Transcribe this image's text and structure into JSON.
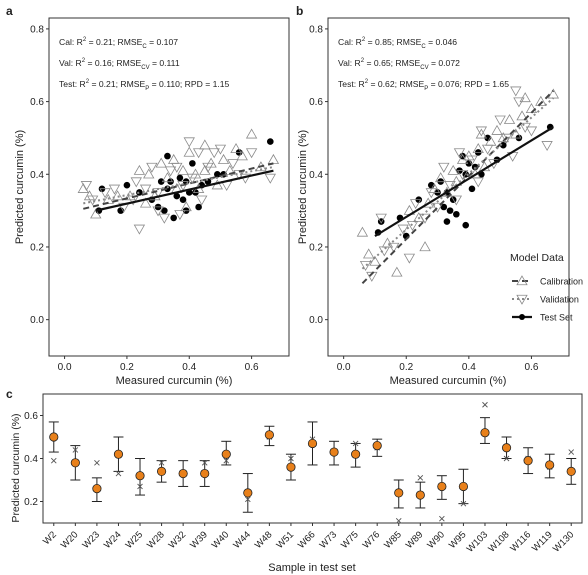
{
  "panels": {
    "a": {
      "letter": "a",
      "ylabel": "Predicted curcumin (%)",
      "xlabel": "Measured curcumin (%)",
      "stats": [
        {
          "pre": "Cal: R",
          "sup": "2",
          "mid": " = 0.21; RMSE",
          "sub": "C",
          "post": " = 0.107"
        },
        {
          "pre": "Val: R",
          "sup": "2",
          "mid": " = 0.16; RMSE",
          "sub": "CV",
          "post": " = 0.111"
        },
        {
          "pre": "Test: R",
          "sup": "2",
          "mid": " = 0.21; RMSE",
          "sub": "P",
          "post": " = 0.110; RPD = 1.15"
        }
      ]
    },
    "b": {
      "letter": "b",
      "ylabel": "Predicted curcumin (%)",
      "xlabel": "Measured curcumin (%)",
      "stats": [
        {
          "pre": "Cal: R",
          "sup": "2",
          "mid": " = 0.85; RMSE",
          "sub": "C",
          "post": " = 0.046"
        },
        {
          "pre": "Val: R",
          "sup": "2",
          "mid": " = 0.65; RMSE",
          "sub": "CV",
          "post": " = 0.072"
        },
        {
          "pre": "Test: R",
          "sup": "2",
          "mid": " = 0.62; RMSE",
          "sub": "P",
          "post": " = 0.076; RPD = 1.65"
        }
      ],
      "legend": {
        "title": "Model Data",
        "items": [
          "Calibration",
          "Validation",
          "Test Set"
        ]
      }
    },
    "c": {
      "letter": "c",
      "ylabel": "Predicted curcumin (%)",
      "xlabel": "Sample in test set"
    }
  },
  "colors": {
    "test_point": "#000000",
    "open_marker": "#8a8a8a",
    "mean_point": "#e8801a",
    "line": "#111111"
  },
  "chart_data": [
    {
      "type": "scatter",
      "panel": "a",
      "xlim": [
        -0.05,
        0.72
      ],
      "ylim": [
        -0.1,
        0.83
      ],
      "xticks": [
        "0.0",
        "0.2",
        "0.4",
        "0.6"
      ],
      "yticks": [
        "0.0",
        "0.2",
        "0.4",
        "0.6",
        "0.8"
      ],
      "series": [
        {
          "name": "Test Set",
          "marker": "filled-circle",
          "points": [
            [
              0.11,
              0.3
            ],
            [
              0.12,
              0.36
            ],
            [
              0.18,
              0.3
            ],
            [
              0.2,
              0.37
            ],
            [
              0.24,
              0.35
            ],
            [
              0.28,
              0.33
            ],
            [
              0.3,
              0.31
            ],
            [
              0.31,
              0.38
            ],
            [
              0.32,
              0.3
            ],
            [
              0.33,
              0.36
            ],
            [
              0.34,
              0.38
            ],
            [
              0.35,
              0.28
            ],
            [
              0.36,
              0.34
            ],
            [
              0.37,
              0.39
            ],
            [
              0.38,
              0.33
            ],
            [
              0.39,
              0.38
            ],
            [
              0.39,
              0.3
            ],
            [
              0.4,
              0.35
            ],
            [
              0.41,
              0.43
            ],
            [
              0.42,
              0.35
            ],
            [
              0.43,
              0.31
            ],
            [
              0.44,
              0.37
            ],
            [
              0.46,
              0.38
            ],
            [
              0.49,
              0.4
            ],
            [
              0.51,
              0.4
            ],
            [
              0.56,
              0.46
            ],
            [
              0.66,
              0.49
            ],
            [
              0.33,
              0.45
            ]
          ]
        },
        {
          "name": "Calibration",
          "marker": "triangle-up",
          "points": [
            [
              0.06,
              0.36
            ],
            [
              0.08,
              0.34
            ],
            [
              0.1,
              0.29
            ],
            [
              0.14,
              0.33
            ],
            [
              0.17,
              0.34
            ],
            [
              0.21,
              0.34
            ],
            [
              0.24,
              0.41
            ],
            [
              0.27,
              0.4
            ],
            [
              0.29,
              0.34
            ],
            [
              0.31,
              0.43
            ],
            [
              0.33,
              0.39
            ],
            [
              0.35,
              0.44
            ],
            [
              0.36,
              0.36
            ],
            [
              0.38,
              0.41
            ],
            [
              0.4,
              0.46
            ],
            [
              0.42,
              0.4
            ],
            [
              0.43,
              0.36
            ],
            [
              0.45,
              0.41
            ],
            [
              0.47,
              0.43
            ],
            [
              0.49,
              0.37
            ],
            [
              0.51,
              0.44
            ],
            [
              0.53,
              0.41
            ],
            [
              0.55,
              0.47
            ],
            [
              0.57,
              0.45
            ],
            [
              0.6,
              0.51
            ],
            [
              0.63,
              0.42
            ],
            [
              0.67,
              0.44
            ],
            [
              0.45,
              0.48
            ],
            [
              0.26,
              0.32
            ],
            [
              0.39,
              0.31
            ]
          ]
        },
        {
          "name": "Validation",
          "marker": "triangle-down",
          "points": [
            [
              0.07,
              0.37
            ],
            [
              0.09,
              0.33
            ],
            [
              0.13,
              0.35
            ],
            [
              0.16,
              0.36
            ],
            [
              0.19,
              0.31
            ],
            [
              0.22,
              0.33
            ],
            [
              0.23,
              0.38
            ],
            [
              0.26,
              0.36
            ],
            [
              0.28,
              0.42
            ],
            [
              0.3,
              0.35
            ],
            [
              0.32,
              0.28
            ],
            [
              0.34,
              0.41
            ],
            [
              0.36,
              0.42
            ],
            [
              0.37,
              0.29
            ],
            [
              0.38,
              0.37
            ],
            [
              0.41,
              0.39
            ],
            [
              0.43,
              0.46
            ],
            [
              0.44,
              0.33
            ],
            [
              0.46,
              0.42
            ],
            [
              0.48,
              0.46
            ],
            [
              0.5,
              0.47
            ],
            [
              0.52,
              0.37
            ],
            [
              0.54,
              0.43
            ],
            [
              0.56,
              0.4
            ],
            [
              0.58,
              0.39
            ],
            [
              0.6,
              0.46
            ],
            [
              0.66,
              0.39
            ],
            [
              0.3,
              0.3
            ],
            [
              0.24,
              0.25
            ],
            [
              0.4,
              0.49
            ]
          ]
        }
      ],
      "fit_lines": [
        {
          "name": "Calibration",
          "style": "dashed",
          "x": [
            0.06,
            0.67
          ],
          "y": [
            0.305,
            0.43
          ]
        },
        {
          "name": "Validation",
          "style": "dotted",
          "x": [
            0.06,
            0.67
          ],
          "y": [
            0.32,
            0.42
          ]
        },
        {
          "name": "Test Set",
          "style": "solid",
          "x": [
            0.1,
            0.67
          ],
          "y": [
            0.3,
            0.41
          ]
        }
      ]
    },
    {
      "type": "scatter",
      "panel": "b",
      "xlim": [
        -0.05,
        0.72
      ],
      "ylim": [
        -0.1,
        0.83
      ],
      "xticks": [
        "0.0",
        "0.2",
        "0.4",
        "0.6"
      ],
      "yticks": [
        "0.0",
        "0.2",
        "0.4",
        "0.6",
        "0.8"
      ],
      "series": [
        {
          "name": "Test Set",
          "marker": "filled-circle",
          "points": [
            [
              0.11,
              0.24
            ],
            [
              0.12,
              0.27
            ],
            [
              0.18,
              0.28
            ],
            [
              0.2,
              0.23
            ],
            [
              0.24,
              0.33
            ],
            [
              0.28,
              0.37
            ],
            [
              0.3,
              0.35
            ],
            [
              0.31,
              0.38
            ],
            [
              0.32,
              0.31
            ],
            [
              0.33,
              0.35
            ],
            [
              0.34,
              0.3
            ],
            [
              0.35,
              0.33
            ],
            [
              0.36,
              0.29
            ],
            [
              0.37,
              0.41
            ],
            [
              0.38,
              0.45
            ],
            [
              0.39,
              0.4
            ],
            [
              0.39,
              0.26
            ],
            [
              0.4,
              0.43
            ],
            [
              0.41,
              0.36
            ],
            [
              0.42,
              0.42
            ],
            [
              0.43,
              0.46
            ],
            [
              0.44,
              0.4
            ],
            [
              0.46,
              0.5
            ],
            [
              0.49,
              0.44
            ],
            [
              0.51,
              0.48
            ],
            [
              0.56,
              0.5
            ],
            [
              0.66,
              0.53
            ],
            [
              0.33,
              0.27
            ]
          ]
        },
        {
          "name": "Calibration",
          "marker": "triangle-up",
          "points": [
            [
              0.06,
              0.24
            ],
            [
              0.08,
              0.18
            ],
            [
              0.1,
              0.16
            ],
            [
              0.14,
              0.21
            ],
            [
              0.17,
              0.13
            ],
            [
              0.21,
              0.3
            ],
            [
              0.24,
              0.28
            ],
            [
              0.27,
              0.32
            ],
            [
              0.29,
              0.36
            ],
            [
              0.31,
              0.39
            ],
            [
              0.33,
              0.35
            ],
            [
              0.35,
              0.41
            ],
            [
              0.36,
              0.38
            ],
            [
              0.38,
              0.44
            ],
            [
              0.4,
              0.45
            ],
            [
              0.42,
              0.4
            ],
            [
              0.43,
              0.47
            ],
            [
              0.45,
              0.42
            ],
            [
              0.47,
              0.49
            ],
            [
              0.49,
              0.52
            ],
            [
              0.51,
              0.5
            ],
            [
              0.53,
              0.55
            ],
            [
              0.55,
              0.51
            ],
            [
              0.57,
              0.56
            ],
            [
              0.6,
              0.58
            ],
            [
              0.63,
              0.6
            ],
            [
              0.67,
              0.62
            ],
            [
              0.26,
              0.2
            ],
            [
              0.44,
              0.51
            ],
            [
              0.58,
              0.61
            ]
          ]
        },
        {
          "name": "Validation",
          "marker": "triangle-down",
          "points": [
            [
              0.07,
              0.15
            ],
            [
              0.09,
              0.12
            ],
            [
              0.13,
              0.19
            ],
            [
              0.16,
              0.2
            ],
            [
              0.19,
              0.25
            ],
            [
              0.22,
              0.26
            ],
            [
              0.23,
              0.32
            ],
            [
              0.26,
              0.28
            ],
            [
              0.28,
              0.35
            ],
            [
              0.3,
              0.31
            ],
            [
              0.32,
              0.42
            ],
            [
              0.34,
              0.37
            ],
            [
              0.36,
              0.33
            ],
            [
              0.37,
              0.46
            ],
            [
              0.38,
              0.4
            ],
            [
              0.41,
              0.44
            ],
            [
              0.43,
              0.38
            ],
            [
              0.44,
              0.52
            ],
            [
              0.46,
              0.47
            ],
            [
              0.48,
              0.43
            ],
            [
              0.5,
              0.55
            ],
            [
              0.52,
              0.5
            ],
            [
              0.54,
              0.45
            ],
            [
              0.56,
              0.6
            ],
            [
              0.58,
              0.53
            ],
            [
              0.6,
              0.52
            ],
            [
              0.65,
              0.48
            ],
            [
              0.55,
              0.63
            ],
            [
              0.21,
              0.17
            ],
            [
              0.12,
              0.28
            ]
          ]
        }
      ],
      "fit_lines": [
        {
          "name": "Calibration",
          "style": "dashed",
          "x": [
            0.06,
            0.67
          ],
          "y": [
            0.1,
            0.63
          ]
        },
        {
          "name": "Validation",
          "style": "dotted",
          "x": [
            0.06,
            0.67
          ],
          "y": [
            0.14,
            0.61
          ]
        },
        {
          "name": "Test Set",
          "style": "solid",
          "x": [
            0.1,
            0.67
          ],
          "y": [
            0.23,
            0.53
          ]
        }
      ]
    },
    {
      "type": "scatter",
      "panel": "c",
      "ylim": [
        0.1,
        0.7
      ],
      "yticks": [
        "0.2",
        "0.4",
        "0.6"
      ],
      "categories": [
        "W2",
        "W20",
        "W23",
        "W24",
        "W25",
        "W28",
        "W32",
        "W39",
        "W40",
        "W44",
        "W48",
        "W51",
        "W66",
        "W73",
        "W75",
        "W76",
        "W85",
        "W89",
        "W90",
        "W95",
        "W103",
        "W108",
        "W116",
        "W119",
        "W130"
      ],
      "series": [
        {
          "name": "mean",
          "values": [
            0.5,
            0.38,
            0.26,
            0.42,
            0.32,
            0.34,
            0.33,
            0.33,
            0.42,
            0.24,
            0.51,
            0.36,
            0.47,
            0.43,
            0.42,
            0.46,
            0.24,
            0.23,
            0.27,
            0.27,
            0.52,
            0.45,
            0.39,
            0.37,
            0.34
          ]
        },
        {
          "name": "lower",
          "values": [
            0.43,
            0.3,
            0.2,
            0.34,
            0.23,
            0.29,
            0.27,
            0.27,
            0.37,
            0.15,
            0.46,
            0.3,
            0.37,
            0.37,
            0.36,
            0.41,
            0.17,
            0.17,
            0.21,
            0.19,
            0.47,
            0.4,
            0.33,
            0.31,
            0.28
          ]
        },
        {
          "name": "upper",
          "values": [
            0.57,
            0.46,
            0.31,
            0.5,
            0.4,
            0.39,
            0.39,
            0.39,
            0.48,
            0.33,
            0.55,
            0.42,
            0.57,
            0.48,
            0.47,
            0.49,
            0.3,
            0.29,
            0.32,
            0.35,
            0.59,
            0.5,
            0.45,
            0.42,
            0.4
          ]
        },
        {
          "name": "measured",
          "values": [
            0.39,
            0.44,
            0.38,
            0.33,
            0.27,
            0.38,
            0.33,
            0.38,
            0.39,
            0.21,
            0.5,
            0.4,
            0.49,
            0.43,
            0.47,
            0.45,
            0.11,
            0.31,
            0.12,
            0.19,
            0.65,
            0.4,
            0.4,
            0.36,
            0.43
          ]
        }
      ]
    }
  ]
}
